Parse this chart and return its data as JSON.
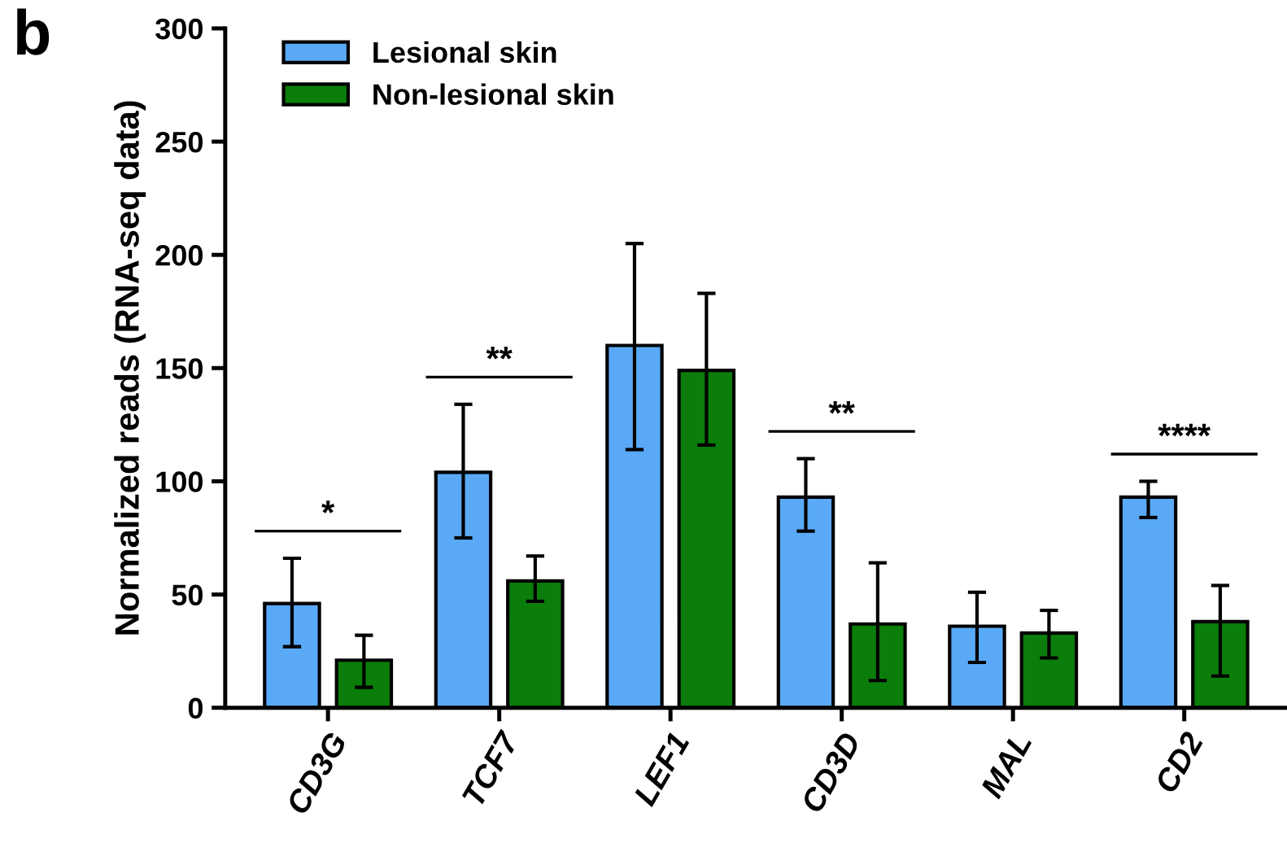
{
  "chart_data": {
    "type": "bar",
    "ylabel": "Normalized reads (RNA-seq data)",
    "categories": [
      "CD3G",
      "TCF7",
      "LEF1",
      "CD3D",
      "MAL",
      "CD2"
    ],
    "series": [
      {
        "name": "Lesional skin",
        "color": "#5aa9f7",
        "values": [
          46,
          104,
          160,
          93,
          36,
          93
        ],
        "errors": [
          [
            27,
            66
          ],
          [
            75,
            134
          ],
          [
            114,
            205
          ],
          [
            78,
            110
          ],
          [
            20,
            51
          ],
          [
            84,
            100
          ]
        ]
      },
      {
        "name": "Non-lesional skin",
        "color": "#0a7d0a",
        "values": [
          21,
          56,
          149,
          37,
          33,
          38
        ],
        "errors": [
          [
            9,
            32
          ],
          [
            47,
            67
          ],
          [
            116,
            183
          ],
          [
            12,
            64
          ],
          [
            22,
            43
          ],
          [
            14,
            54
          ]
        ]
      }
    ],
    "ylim": [
      0,
      300
    ],
    "yticks": [
      0,
      50,
      100,
      150,
      200,
      250,
      300
    ],
    "grid": false,
    "legend": "top left",
    "annotations": [
      "b",
      "*",
      "**",
      "**",
      "****"
    ]
  }
}
